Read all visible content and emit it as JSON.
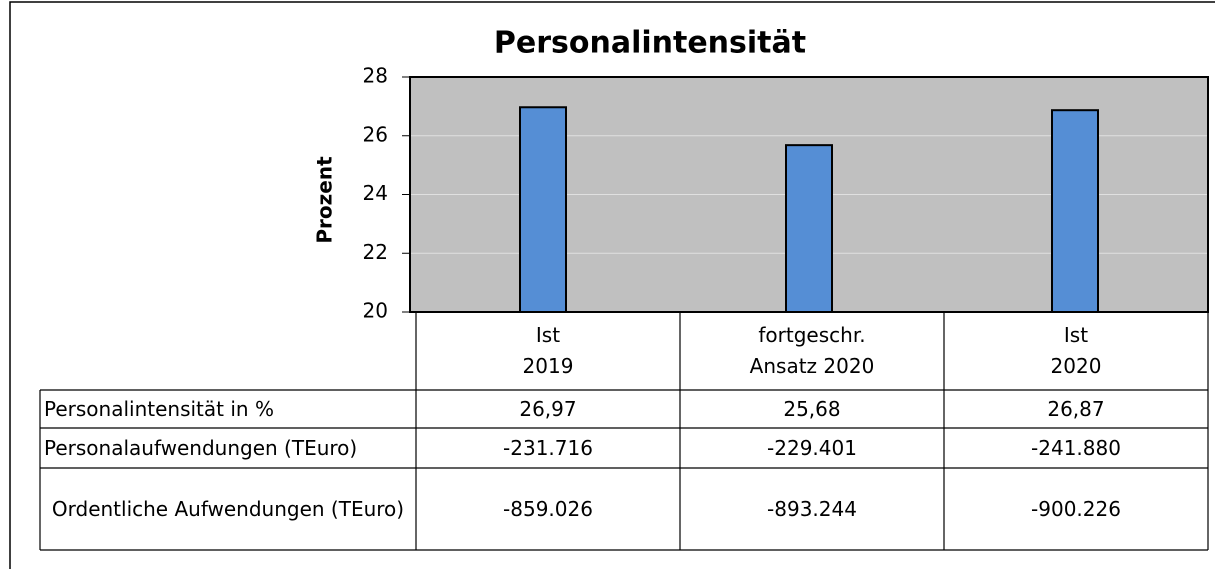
{
  "chart_data": {
    "type": "bar",
    "title": "Personalintensität",
    "y_label": "Prozent",
    "categories": [
      "Ist\n2019",
      "fortgeschr.\nAnsatz 2020",
      "Ist\n2020"
    ],
    "values": [
      26.97,
      25.68,
      26.87
    ],
    "value_labels": [
      "26,97",
      "25,68",
      "26,87"
    ],
    "color": "#558ed5",
    "plot_background": "#c0c0c0",
    "ylim": [
      20,
      28
    ],
    "yticks": [
      20,
      22,
      24,
      26,
      28
    ],
    "grid": true,
    "table": {
      "rows": [
        {
          "label": "Personalintensität in %"
        },
        {
          "label": "Personalaufwendungen (TEuro)",
          "values": [
            -231716,
            -229401,
            -241880
          ],
          "value_labels": [
            "-231.716",
            "-229.401",
            "-241.880"
          ]
        },
        {
          "label": "Ordentliche Aufwendungen (TEuro)",
          "values": [
            -859026,
            -893244,
            -900226
          ],
          "value_labels": [
            "-859.026",
            "-893.244",
            "-900.226"
          ]
        }
      ]
    }
  }
}
